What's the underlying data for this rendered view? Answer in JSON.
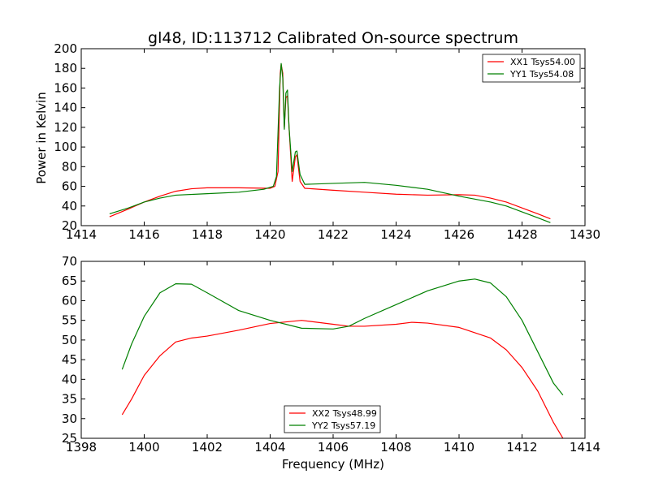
{
  "chart_data": [
    {
      "type": "line",
      "title": "gl48, ID:113712 Calibrated On-source spectrum",
      "xlabel": "",
      "ylabel": "Power in Kelvin",
      "xlim": [
        1414,
        1430
      ],
      "ylim": [
        20,
        200
      ],
      "xticks": [
        1414,
        1416,
        1418,
        1420,
        1422,
        1424,
        1426,
        1428,
        1430
      ],
      "yticks": [
        20,
        40,
        60,
        80,
        100,
        120,
        140,
        160,
        180,
        200
      ],
      "legend_position": "top-right",
      "series": [
        {
          "name": "XX1 Tsys54.00",
          "color": "#ff0000",
          "points": [
            [
              1414.9,
              29
            ],
            [
              1415.5,
              37
            ],
            [
              1416,
              44
            ],
            [
              1416.5,
              50
            ],
            [
              1417,
              55
            ],
            [
              1417.5,
              57.5
            ],
            [
              1418,
              58.5
            ],
            [
              1419,
              58.5
            ],
            [
              1420,
              58
            ],
            [
              1420.15,
              60
            ],
            [
              1420.25,
              75
            ],
            [
              1420.32,
              175
            ],
            [
              1420.35,
              184
            ],
            [
              1420.4,
              175
            ],
            [
              1420.45,
              120
            ],
            [
              1420.5,
              150
            ],
            [
              1420.55,
              152
            ],
            [
              1420.6,
              120
            ],
            [
              1420.7,
              65
            ],
            [
              1420.8,
              90
            ],
            [
              1420.85,
              92
            ],
            [
              1420.95,
              65
            ],
            [
              1421.1,
              58
            ],
            [
              1422,
              56
            ],
            [
              1423,
              54
            ],
            [
              1424,
              52
            ],
            [
              1425,
              51
            ],
            [
              1426,
              51.5
            ],
            [
              1426.5,
              51
            ],
            [
              1427,
              48
            ],
            [
              1427.5,
              44
            ],
            [
              1428,
              38
            ],
            [
              1428.5,
              32
            ],
            [
              1428.9,
              27
            ]
          ]
        },
        {
          "name": "YY1 Tsys54.08",
          "color": "#008000",
          "points": [
            [
              1414.9,
              32
            ],
            [
              1415.5,
              38
            ],
            [
              1416,
              44
            ],
            [
              1416.5,
              48
            ],
            [
              1417,
              51
            ],
            [
              1418,
              52.5
            ],
            [
              1419,
              54
            ],
            [
              1419.8,
              57
            ],
            [
              1420.1,
              60
            ],
            [
              1420.2,
              70
            ],
            [
              1420.3,
              160
            ],
            [
              1420.35,
              185
            ],
            [
              1420.4,
              170
            ],
            [
              1420.45,
              118
            ],
            [
              1420.5,
              155
            ],
            [
              1420.55,
              158
            ],
            [
              1420.6,
              120
            ],
            [
              1420.7,
              75
            ],
            [
              1420.8,
              95
            ],
            [
              1420.85,
              96
            ],
            [
              1420.95,
              72
            ],
            [
              1421.1,
              62
            ],
            [
              1422,
              63
            ],
            [
              1423,
              64
            ],
            [
              1424,
              61
            ],
            [
              1425,
              57
            ],
            [
              1426,
              50
            ],
            [
              1427,
              44
            ],
            [
              1427.5,
              40
            ],
            [
              1428,
              34
            ],
            [
              1428.5,
              28
            ],
            [
              1428.9,
              23
            ]
          ]
        }
      ]
    },
    {
      "type": "line",
      "title": "",
      "xlabel": "Frequency (MHz)",
      "ylabel": "",
      "xlim": [
        1398,
        1414
      ],
      "ylim": [
        25,
        70
      ],
      "xticks": [
        1398,
        1400,
        1402,
        1404,
        1406,
        1408,
        1410,
        1412,
        1414
      ],
      "yticks": [
        25,
        30,
        35,
        40,
        45,
        50,
        55,
        60,
        65,
        70
      ],
      "legend_position": "bottom-center",
      "series": [
        {
          "name": "XX2 Tsys48.99",
          "color": "#ff0000",
          "points": [
            [
              1399.3,
              31
            ],
            [
              1399.6,
              35
            ],
            [
              1400,
              41
            ],
            [
              1400.5,
              46
            ],
            [
              1401,
              49.5
            ],
            [
              1401.5,
              50.5
            ],
            [
              1402,
              51
            ],
            [
              1403,
              52.5
            ],
            [
              1404,
              54.2
            ],
            [
              1405,
              55
            ],
            [
              1406,
              54
            ],
            [
              1406.5,
              53.5
            ],
            [
              1407,
              53.5
            ],
            [
              1408,
              54
            ],
            [
              1408.5,
              54.5
            ],
            [
              1409,
              54.3
            ],
            [
              1410,
              53.2
            ],
            [
              1411,
              50.5
            ],
            [
              1411.5,
              47.5
            ],
            [
              1412,
              43
            ],
            [
              1412.5,
              37
            ],
            [
              1413,
              29
            ],
            [
              1413.3,
              25
            ]
          ]
        },
        {
          "name": "YY2 Tsys57.19",
          "color": "#008000",
          "points": [
            [
              1399.3,
              42.5
            ],
            [
              1399.6,
              49
            ],
            [
              1400,
              56
            ],
            [
              1400.5,
              62
            ],
            [
              1401,
              64.3
            ],
            [
              1401.5,
              64.2
            ],
            [
              1402,
              62
            ],
            [
              1403,
              57.5
            ],
            [
              1404,
              55
            ],
            [
              1405,
              53
            ],
            [
              1406,
              52.8
            ],
            [
              1406.5,
              53.5
            ],
            [
              1407,
              55.5
            ],
            [
              1408,
              59
            ],
            [
              1409,
              62.5
            ],
            [
              1410,
              65
            ],
            [
              1410.5,
              65.5
            ],
            [
              1411,
              64.5
            ],
            [
              1411.5,
              61
            ],
            [
              1412,
              55
            ],
            [
              1412.5,
              47
            ],
            [
              1413,
              39
            ],
            [
              1413.3,
              36
            ]
          ]
        }
      ]
    }
  ]
}
